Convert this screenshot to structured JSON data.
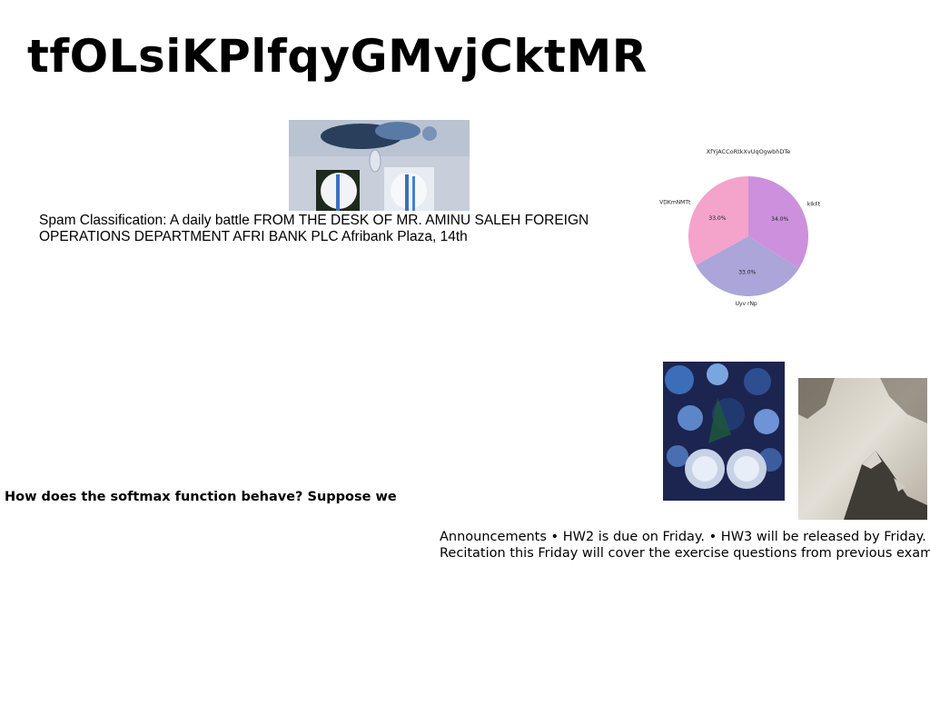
{
  "page": {
    "title": "tfOLsiKPlfqyGMvjCktMR"
  },
  "blocks": {
    "spam_text": "Spam Classification: A daily battle FROM THE DESK OF MR. AMINU SALEH FOREIGN OPERATIONS DEPARTMENT AFRI BANK PLC Afribank Plaza, 14th",
    "softmax_text": "How does the softmax function behave? Suppose we",
    "announce_line1": "Announcements • HW2 is due on Friday. • HW3 will be released by Friday.",
    "announce_line2": "Recitation this Friday will cover the exercise questions from previous exams"
  },
  "colors": {
    "pie_1": "#cd90dd",
    "pie_2": "#aba5d9",
    "pie_3": "#f4a3cb"
  },
  "chart_data": {
    "type": "pie",
    "title": "XfYjACCoRtkXvUqOgwbhDTe",
    "categories": [
      "kIkFt",
      "Uyv rNp",
      "VDKmNMTt"
    ],
    "values": [
      34.0,
      33.0,
      33.0
    ],
    "value_labels": [
      "34.0%",
      "33.0%",
      "33.0%"
    ],
    "legend": "none"
  }
}
